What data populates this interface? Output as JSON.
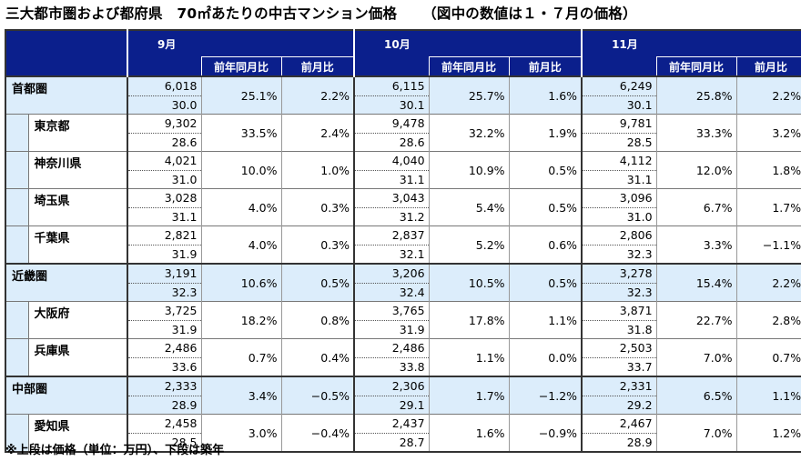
{
  "title": "三大都市圏および都府県　70㎡あたりの中古マンション価格",
  "subtitle": "（図中の数値は１・７月の価格）",
  "months": [
    "9月",
    "10月",
    "11月"
  ],
  "sub_headers": {
    "yoy": "前年同月比",
    "mom": "前月比"
  },
  "rows": [
    {
      "name": "首都圏",
      "level": "region",
      "data": [
        {
          "price": "6,018",
          "age": "30.0",
          "yoy": "25.1%",
          "mom": "2.2%"
        },
        {
          "price": "6,115",
          "age": "30.1",
          "yoy": "25.7%",
          "mom": "1.6%"
        },
        {
          "price": "6,249",
          "age": "30.1",
          "yoy": "25.8%",
          "mom": "2.2%"
        }
      ]
    },
    {
      "name": "東京都",
      "level": "pref",
      "data": [
        {
          "price": "9,302",
          "age": "28.6",
          "yoy": "33.5%",
          "mom": "2.4%"
        },
        {
          "price": "9,478",
          "age": "28.6",
          "yoy": "32.2%",
          "mom": "1.9%"
        },
        {
          "price": "9,781",
          "age": "28.5",
          "yoy": "33.3%",
          "mom": "3.2%"
        }
      ]
    },
    {
      "name": "神奈川県",
      "level": "pref",
      "data": [
        {
          "price": "4,021",
          "age": "31.0",
          "yoy": "10.0%",
          "mom": "1.0%"
        },
        {
          "price": "4,040",
          "age": "31.1",
          "yoy": "10.9%",
          "mom": "0.5%"
        },
        {
          "price": "4,112",
          "age": "31.1",
          "yoy": "12.0%",
          "mom": "1.8%"
        }
      ]
    },
    {
      "name": "埼玉県",
      "level": "pref",
      "data": [
        {
          "price": "3,028",
          "age": "31.1",
          "yoy": "4.0%",
          "mom": "0.3%"
        },
        {
          "price": "3,043",
          "age": "31.2",
          "yoy": "5.4%",
          "mom": "0.5%"
        },
        {
          "price": "3,096",
          "age": "31.0",
          "yoy": "6.7%",
          "mom": "1.7%"
        }
      ]
    },
    {
      "name": "千葉県",
      "level": "pref",
      "data": [
        {
          "price": "2,821",
          "age": "31.9",
          "yoy": "4.0%",
          "mom": "0.3%"
        },
        {
          "price": "2,837",
          "age": "32.1",
          "yoy": "5.2%",
          "mom": "0.6%"
        },
        {
          "price": "2,806",
          "age": "32.3",
          "yoy": "3.3%",
          "mom": "−1.1%"
        }
      ]
    },
    {
      "name": "近畿圏",
      "level": "region",
      "data": [
        {
          "price": "3,191",
          "age": "32.3",
          "yoy": "10.6%",
          "mom": "0.5%"
        },
        {
          "price": "3,206",
          "age": "32.4",
          "yoy": "10.5%",
          "mom": "0.5%"
        },
        {
          "price": "3,278",
          "age": "32.3",
          "yoy": "15.4%",
          "mom": "2.2%"
        }
      ]
    },
    {
      "name": "大阪府",
      "level": "pref",
      "data": [
        {
          "price": "3,725",
          "age": "31.9",
          "yoy": "18.2%",
          "mom": "0.8%"
        },
        {
          "price": "3,765",
          "age": "31.9",
          "yoy": "17.8%",
          "mom": "1.1%"
        },
        {
          "price": "3,871",
          "age": "31.8",
          "yoy": "22.7%",
          "mom": "2.8%"
        }
      ]
    },
    {
      "name": "兵庫県",
      "level": "pref",
      "data": [
        {
          "price": "2,486",
          "age": "33.6",
          "yoy": "0.7%",
          "mom": "0.4%"
        },
        {
          "price": "2,486",
          "age": "33.8",
          "yoy": "1.1%",
          "mom": "0.0%"
        },
        {
          "price": "2,503",
          "age": "33.7",
          "yoy": "7.0%",
          "mom": "0.7%"
        }
      ]
    },
    {
      "name": "中部圏",
      "level": "region",
      "data": [
        {
          "price": "2,333",
          "age": "28.9",
          "yoy": "3.4%",
          "mom": "−0.5%"
        },
        {
          "price": "2,306",
          "age": "29.1",
          "yoy": "1.7%",
          "mom": "−1.2%"
        },
        {
          "price": "2,331",
          "age": "29.2",
          "yoy": "6.5%",
          "mom": "1.1%"
        }
      ]
    },
    {
      "name": "愛知県",
      "level": "pref",
      "data": [
        {
          "price": "2,458",
          "age": "28.5",
          "yoy": "3.0%",
          "mom": "−0.4%"
        },
        {
          "price": "2,437",
          "age": "28.7",
          "yoy": "1.6%",
          "mom": "−0.9%"
        },
        {
          "price": "2,467",
          "age": "28.9",
          "yoy": "7.0%",
          "mom": "1.2%"
        }
      ]
    }
  ],
  "footer": "※上段は価格（単位：万円）、下段は築年",
  "colors": {
    "header_bg": "#0b1f8c",
    "region_bg": "#dcedfb"
  }
}
